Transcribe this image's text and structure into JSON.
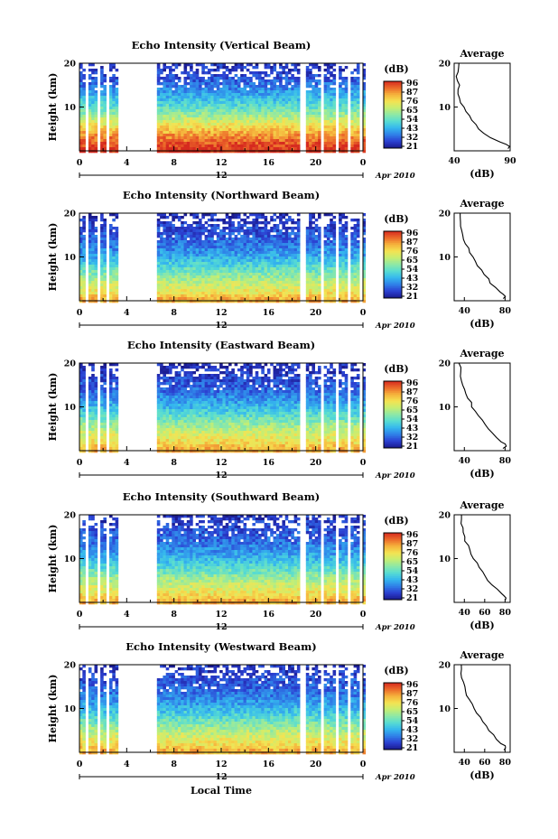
{
  "shared": {
    "xlabel": "Local Time",
    "ylabel": "Height (km)",
    "x_ticks": [
      "0",
      "4",
      "8",
      "12",
      "16",
      "20",
      "0"
    ],
    "date_label": "Apr 2010",
    "date_tick": "12",
    "colorbar_unit": "(dB)",
    "avg_title": "Average",
    "avg_xlabel": "(dB)",
    "y_ticks": [
      "10",
      "20"
    ],
    "colormap": [
      "#1a1a8c",
      "#2b3fd1",
      "#2f7fe8",
      "#35b7ee",
      "#57dcd2",
      "#8de8a6",
      "#c6ee72",
      "#f4e352",
      "#f5b23c",
      "#ec6a2a",
      "#d62a1f"
    ]
  },
  "chart_data": [
    {
      "type": "heatmap",
      "title": "Echo Intensity (Vertical Beam)",
      "xlabel": "Local Time",
      "ylabel": "Height (km)",
      "xlim": [
        0,
        24
      ],
      "ylim": [
        0,
        20
      ],
      "colorbar": {
        "label": "(dB)",
        "ticks": [
          "96",
          "87",
          "76",
          "65",
          "54",
          "43",
          "32",
          "21"
        ],
        "range": [
          21,
          96
        ]
      },
      "gaps_hours": [
        [
          0.55,
          0.85
        ],
        [
          1.55,
          1.75
        ],
        [
          2.35,
          2.55
        ],
        [
          3.25,
          6.45
        ],
        [
          18.75,
          19.25
        ],
        [
          20.55,
          20.75
        ],
        [
          21.75,
          21.95
        ],
        [
          22.75,
          23.0
        ],
        [
          23.6,
          24.0
        ]
      ],
      "profile": [
        [
          0.5,
          95
        ],
        [
          2,
          90
        ],
        [
          4,
          82
        ],
        [
          6,
          72
        ],
        [
          8,
          62
        ],
        [
          10,
          52
        ],
        [
          12,
          45
        ],
        [
          14,
          38
        ],
        [
          16,
          32
        ],
        [
          18,
          28
        ],
        [
          20,
          26
        ]
      ],
      "average": {
        "title": "Average",
        "xlabel": "(dB)",
        "x_ticks": [
          "40",
          "90"
        ],
        "xlim": [
          40,
          90
        ],
        "ylim": [
          0,
          20
        ],
        "profile": [
          [
            0.5,
            88
          ],
          [
            1,
            89
          ],
          [
            1.5,
            87
          ],
          [
            2,
            80
          ],
          [
            3,
            72
          ],
          [
            4,
            66
          ],
          [
            5,
            62
          ],
          [
            6,
            59
          ],
          [
            7,
            56
          ],
          [
            8,
            53
          ],
          [
            9,
            50
          ],
          [
            10,
            48
          ],
          [
            11,
            45
          ],
          [
            12,
            44
          ],
          [
            13,
            43
          ],
          [
            14,
            44
          ],
          [
            15,
            45
          ],
          [
            16,
            43
          ],
          [
            17,
            42
          ],
          [
            18,
            44
          ],
          [
            19,
            45
          ],
          [
            20,
            44
          ]
        ]
      }
    },
    {
      "type": "heatmap",
      "title": "Echo Intensity (Northward Beam)",
      "xlabel": "Local Time",
      "ylabel": "Height (km)",
      "xlim": [
        0,
        24
      ],
      "ylim": [
        0,
        20
      ],
      "colorbar": {
        "label": "(dB)",
        "ticks": [
          "96",
          "87",
          "76",
          "65",
          "54",
          "43",
          "32",
          "21"
        ],
        "range": [
          21,
          96
        ]
      },
      "gaps_hours": [
        [
          0.55,
          0.85
        ],
        [
          1.55,
          1.75
        ],
        [
          2.35,
          2.55
        ],
        [
          3.25,
          6.45
        ],
        [
          18.75,
          19.25
        ],
        [
          20.55,
          20.75
        ],
        [
          21.75,
          21.95
        ],
        [
          22.75,
          23.0
        ],
        [
          23.6,
          24.0
        ]
      ],
      "profile": [
        [
          0.5,
          80
        ],
        [
          2,
          72
        ],
        [
          4,
          66
        ],
        [
          6,
          58
        ],
        [
          8,
          50
        ],
        [
          10,
          42
        ],
        [
          12,
          37
        ],
        [
          14,
          33
        ],
        [
          16,
          30
        ],
        [
          18,
          27
        ],
        [
          20,
          25
        ]
      ],
      "average": {
        "title": "Average",
        "xlabel": "(dB)",
        "x_ticks": [
          "40",
          "80"
        ],
        "xlim": [
          30,
          85
        ],
        "ylim": [
          0,
          20
        ],
        "profile": [
          [
            0.5,
            78
          ],
          [
            1,
            80
          ],
          [
            1.5,
            79
          ],
          [
            2,
            75
          ],
          [
            3,
            70
          ],
          [
            4,
            66
          ],
          [
            5,
            63
          ],
          [
            6,
            59
          ],
          [
            7,
            56
          ],
          [
            8,
            53
          ],
          [
            9,
            50
          ],
          [
            10,
            48
          ],
          [
            11,
            46
          ],
          [
            12,
            44
          ],
          [
            13,
            42
          ],
          [
            14,
            40
          ],
          [
            15,
            39
          ],
          [
            16,
            38
          ],
          [
            17,
            37
          ],
          [
            18,
            36
          ],
          [
            19,
            37
          ],
          [
            20,
            36
          ]
        ]
      }
    },
    {
      "type": "heatmap",
      "title": "Echo Intensity (Eastward Beam)",
      "xlabel": "Local Time",
      "ylabel": "Height (km)",
      "xlim": [
        0,
        24
      ],
      "ylim": [
        0,
        20
      ],
      "colorbar": {
        "label": "(dB)",
        "ticks": [
          "96",
          "87",
          "76",
          "65",
          "54",
          "43",
          "32",
          "21"
        ],
        "range": [
          21,
          96
        ]
      },
      "gaps_hours": [
        [
          0.55,
          0.85
        ],
        [
          1.55,
          1.75
        ],
        [
          2.35,
          2.55
        ],
        [
          3.25,
          6.45
        ],
        [
          18.75,
          19.25
        ],
        [
          20.55,
          20.75
        ],
        [
          21.75,
          21.95
        ],
        [
          22.75,
          23.0
        ],
        [
          23.6,
          24.0
        ]
      ],
      "profile": [
        [
          0.5,
          80
        ],
        [
          2,
          74
        ],
        [
          4,
          68
        ],
        [
          6,
          60
        ],
        [
          8,
          52
        ],
        [
          10,
          44
        ],
        [
          12,
          38
        ],
        [
          14,
          33
        ],
        [
          16,
          30
        ],
        [
          18,
          27
        ],
        [
          20,
          25
        ]
      ],
      "average": {
        "title": "Average",
        "xlabel": "(dB)",
        "x_ticks": [
          "40",
          "80"
        ],
        "xlim": [
          30,
          85
        ],
        "ylim": [
          0,
          20
        ],
        "profile": [
          [
            0.5,
            78
          ],
          [
            1,
            81
          ],
          [
            1.5,
            80
          ],
          [
            2,
            76
          ],
          [
            3,
            71
          ],
          [
            4,
            67
          ],
          [
            5,
            63
          ],
          [
            6,
            60
          ],
          [
            7,
            57
          ],
          [
            8,
            54
          ],
          [
            9,
            51
          ],
          [
            10,
            48
          ],
          [
            11,
            46
          ],
          [
            12,
            44
          ],
          [
            13,
            42
          ],
          [
            14,
            40
          ],
          [
            15,
            39
          ],
          [
            16,
            38
          ],
          [
            17,
            37
          ],
          [
            18,
            36
          ],
          [
            19,
            36
          ],
          [
            20,
            35
          ]
        ]
      }
    },
    {
      "type": "heatmap",
      "title": "Echo Intensity (Southward Beam)",
      "xlabel": "Local Time",
      "ylabel": "Height (km)",
      "xlim": [
        0,
        24
      ],
      "ylim": [
        0,
        20
      ],
      "colorbar": {
        "label": "(dB)",
        "ticks": [
          "96",
          "87",
          "76",
          "65",
          "54",
          "43",
          "32",
          "21"
        ],
        "range": [
          21,
          96
        ]
      },
      "gaps_hours": [
        [
          0.55,
          0.85
        ],
        [
          1.55,
          1.75
        ],
        [
          2.35,
          2.55
        ],
        [
          3.25,
          6.45
        ],
        [
          18.75,
          19.25
        ],
        [
          20.55,
          20.75
        ],
        [
          21.75,
          21.95
        ],
        [
          22.75,
          23.0
        ],
        [
          23.6,
          24.0
        ]
      ],
      "profile": [
        [
          0.5,
          80
        ],
        [
          2,
          73
        ],
        [
          4,
          67
        ],
        [
          6,
          59
        ],
        [
          8,
          51
        ],
        [
          10,
          44
        ],
        [
          12,
          38
        ],
        [
          14,
          34
        ],
        [
          16,
          31
        ],
        [
          18,
          28
        ],
        [
          20,
          26
        ]
      ],
      "average": {
        "title": "Average",
        "xlabel": "(dB)",
        "x_ticks": [
          "40",
          "60",
          "80"
        ],
        "xlim": [
          30,
          85
        ],
        "ylim": [
          0,
          20
        ],
        "profile": [
          [
            0.5,
            80
          ],
          [
            1,
            82
          ],
          [
            1.5,
            80
          ],
          [
            2,
            76
          ],
          [
            3,
            72
          ],
          [
            4,
            68
          ],
          [
            5,
            64
          ],
          [
            6,
            61
          ],
          [
            7,
            58
          ],
          [
            8,
            55
          ],
          [
            9,
            52
          ],
          [
            10,
            49
          ],
          [
            11,
            47
          ],
          [
            12,
            45
          ],
          [
            13,
            43
          ],
          [
            14,
            41
          ],
          [
            15,
            40
          ],
          [
            16,
            39
          ],
          [
            17,
            38
          ],
          [
            18,
            37
          ],
          [
            19,
            38
          ],
          [
            20,
            37
          ]
        ]
      }
    },
    {
      "type": "heatmap",
      "title": "Echo Intensity (Westward Beam)",
      "xlabel": "Local Time",
      "ylabel": "Height (km)",
      "xlim": [
        0,
        24
      ],
      "ylim": [
        0,
        20
      ],
      "colorbar": {
        "label": "(dB)",
        "ticks": [
          "96",
          "87",
          "76",
          "65",
          "54",
          "43",
          "32",
          "21"
        ],
        "range": [
          21,
          96
        ]
      },
      "gaps_hours": [
        [
          0.55,
          0.85
        ],
        [
          1.55,
          1.75
        ],
        [
          2.35,
          2.55
        ],
        [
          3.25,
          6.45
        ],
        [
          18.75,
          19.25
        ],
        [
          20.55,
          20.75
        ],
        [
          21.75,
          21.95
        ],
        [
          22.75,
          23.0
        ],
        [
          23.6,
          24.0
        ]
      ],
      "profile": [
        [
          0.5,
          80
        ],
        [
          2,
          73
        ],
        [
          4,
          67
        ],
        [
          6,
          59
        ],
        [
          8,
          51
        ],
        [
          10,
          44
        ],
        [
          12,
          38
        ],
        [
          14,
          34
        ],
        [
          16,
          31
        ],
        [
          18,
          28
        ],
        [
          20,
          26
        ]
      ],
      "average": {
        "title": "Average",
        "xlabel": "(dB)",
        "x_ticks": [
          "40",
          "60",
          "80"
        ],
        "xlim": [
          30,
          85
        ],
        "ylim": [
          0,
          20
        ],
        "profile": [
          [
            0.5,
            79
          ],
          [
            1,
            81
          ],
          [
            1.5,
            80
          ],
          [
            2,
            76
          ],
          [
            3,
            72
          ],
          [
            4,
            68
          ],
          [
            5,
            64
          ],
          [
            6,
            61
          ],
          [
            7,
            58
          ],
          [
            8,
            55
          ],
          [
            9,
            52
          ],
          [
            10,
            49
          ],
          [
            11,
            47
          ],
          [
            12,
            45
          ],
          [
            13,
            43
          ],
          [
            14,
            41
          ],
          [
            15,
            40
          ],
          [
            16,
            39
          ],
          [
            17,
            38
          ],
          [
            18,
            37
          ],
          [
            19,
            38
          ],
          [
            20,
            37
          ]
        ]
      }
    }
  ]
}
